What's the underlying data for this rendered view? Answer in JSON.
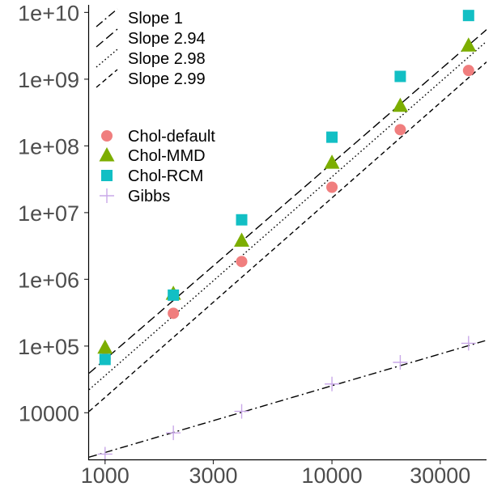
{
  "chart_data": {
    "type": "scatter",
    "x_scale": "log",
    "y_scale": "log",
    "xlim": [
      850,
      48000
    ],
    "ylim": [
      2000,
      13000000000
    ],
    "x_ticks": [
      {
        "value": 1000,
        "label": "1000"
      },
      {
        "value": 3000,
        "label": "3000"
      },
      {
        "value": 10000,
        "label": "10000"
      },
      {
        "value": 30000,
        "label": "30000"
      }
    ],
    "y_ticks": [
      {
        "value": 10000,
        "label": "10000"
      },
      {
        "value": 100000,
        "label": "1e+05"
      },
      {
        "value": 1000000,
        "label": "1e+06"
      },
      {
        "value": 10000000,
        "label": "1e+07"
      },
      {
        "value": 100000000,
        "label": "1e+08"
      },
      {
        "value": 1000000000,
        "label": "1e+09"
      },
      {
        "value": 10000000000,
        "label": "1e+10"
      }
    ],
    "grid": false,
    "series": [
      {
        "name": "Chol-default",
        "marker": "circle",
        "color": "#F07E7E",
        "points": [
          [
            1000,
            65000
          ],
          [
            2000,
            310000
          ],
          [
            4000,
            1850000
          ],
          [
            10000,
            24000000
          ],
          [
            20000,
            175000000
          ],
          [
            40000,
            1350000000
          ]
        ]
      },
      {
        "name": "Chol-MMD",
        "marker": "triangle",
        "color": "#7CAE00",
        "points": [
          [
            1000,
            95000
          ],
          [
            2000,
            610000
          ],
          [
            4000,
            3800000
          ],
          [
            10000,
            56000000
          ],
          [
            20000,
            400000000
          ],
          [
            40000,
            3200000000
          ]
        ]
      },
      {
        "name": "Chol-RCM",
        "marker": "square",
        "color": "#12BFC4",
        "points": [
          [
            1000,
            63000
          ],
          [
            2000,
            580000
          ],
          [
            4000,
            7800000
          ],
          [
            10000,
            135000000
          ],
          [
            20000,
            1100000000
          ],
          [
            40000,
            9000000000
          ]
        ]
      },
      {
        "name": "Gibbs",
        "marker": "plus",
        "color": "#C9A8E8",
        "points": [
          [
            1000,
            2400
          ],
          [
            2000,
            5000
          ],
          [
            4000,
            10500
          ],
          [
            10000,
            27000
          ],
          [
            20000,
            57000
          ],
          [
            40000,
            110000
          ]
        ]
      }
    ],
    "lines": [
      {
        "name": "Slope 1",
        "slope": 1,
        "dash": "longdash-dot",
        "x_range": [
          850,
          48000
        ],
        "y_at_1000": 2540
      },
      {
        "name": "Slope 2.94",
        "slope": 2.94,
        "dash": "longdash",
        "x_range": [
          850,
          48000
        ],
        "y_at_1000": 63000
      },
      {
        "name": "Slope 2.98",
        "slope": 2.98,
        "dash": "dotted",
        "x_range": [
          850,
          48000
        ],
        "y_at_1000": 36000
      },
      {
        "name": "Slope 2.99",
        "slope": 2.99,
        "dash": "dashed",
        "x_range": [
          850,
          48000
        ],
        "y_at_1000": 17000
      }
    ],
    "legend_position": "top-left"
  }
}
